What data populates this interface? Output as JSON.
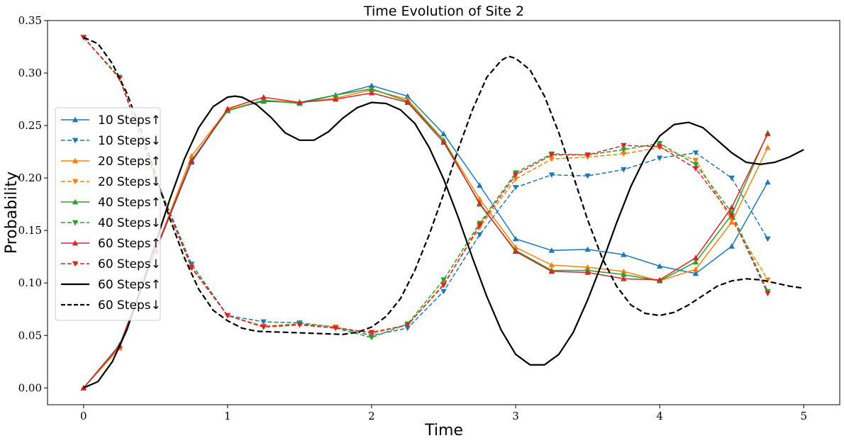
{
  "chart_data": {
    "type": "line",
    "title": "Time Evolution of Site 2",
    "xlabel": "Time",
    "ylabel": "Probability",
    "xlim": [
      -0.25,
      5.25
    ],
    "ylim": [
      -0.016,
      0.35
    ],
    "xticks": [
      0,
      1,
      2,
      3,
      4,
      5
    ],
    "xtick_labels": [
      "0",
      "1",
      "2",
      "3",
      "4",
      "5"
    ],
    "yticks": [
      0.0,
      0.05,
      0.1,
      0.15,
      0.2,
      0.25,
      0.3,
      0.35
    ],
    "ytick_labels": [
      "0.00",
      "0.05",
      "0.10",
      "0.15",
      "0.20",
      "0.25",
      "0.30",
      "0.35"
    ],
    "grid": false,
    "legend_position": "center-left",
    "x": [
      0,
      0.25,
      0.5,
      0.75,
      1.0,
      1.25,
      1.5,
      1.75,
      2.0,
      2.25,
      2.5,
      2.75,
      3.0,
      3.25,
      3.5,
      3.75,
      4.0,
      4.25,
      4.5,
      4.75
    ],
    "series": [
      {
        "name": "10 Steps↑",
        "color": "#1f77b4",
        "dash": "solid",
        "marker": "triangle-up",
        "values": [
          0.0,
          0.041,
          0.13,
          0.215,
          0.265,
          0.273,
          0.272,
          0.279,
          0.288,
          0.278,
          0.242,
          0.193,
          0.142,
          0.131,
          0.132,
          0.127,
          0.116,
          0.109,
          0.135,
          0.196
        ]
      },
      {
        "name": "10 Steps↓",
        "color": "#1f77b4",
        "dash": "dashed",
        "marker": "triangle-down",
        "values": [
          0.334,
          0.295,
          0.2,
          0.118,
          0.069,
          0.063,
          0.062,
          0.058,
          0.05,
          0.057,
          0.092,
          0.146,
          0.191,
          0.203,
          0.202,
          0.208,
          0.219,
          0.224,
          0.2,
          0.142
        ]
      },
      {
        "name": "20 Steps↑",
        "color": "#ff7f0e",
        "dash": "solid",
        "marker": "triangle-up",
        "values": [
          0.0,
          0.038,
          0.131,
          0.221,
          0.265,
          0.274,
          0.272,
          0.276,
          0.284,
          0.275,
          0.236,
          0.18,
          0.134,
          0.117,
          0.115,
          0.111,
          0.102,
          0.113,
          0.158,
          0.229
        ]
      },
      {
        "name": "20 Steps↓",
        "color": "#ff7f0e",
        "dash": "dashed",
        "marker": "triangle-down",
        "values": [
          0.334,
          0.295,
          0.198,
          0.114,
          0.069,
          0.059,
          0.061,
          0.058,
          0.052,
          0.06,
          0.099,
          0.153,
          0.199,
          0.218,
          0.22,
          0.223,
          0.229,
          0.217,
          0.16,
          0.103
        ]
      },
      {
        "name": "40 Steps↑",
        "color": "#2ca02c",
        "dash": "solid",
        "marker": "triangle-up",
        "values": [
          0.0,
          0.04,
          0.131,
          0.217,
          0.264,
          0.274,
          0.271,
          0.279,
          0.285,
          0.273,
          0.236,
          0.175,
          0.131,
          0.112,
          0.112,
          0.108,
          0.102,
          0.12,
          0.165,
          0.243
        ]
      },
      {
        "name": "40 Steps↓",
        "color": "#2ca02c",
        "dash": "dashed",
        "marker": "triangle-down",
        "values": [
          0.334,
          0.296,
          0.2,
          0.115,
          0.069,
          0.058,
          0.061,
          0.057,
          0.048,
          0.061,
          0.103,
          0.157,
          0.205,
          0.223,
          0.222,
          0.227,
          0.233,
          0.213,
          0.167,
          0.092
        ]
      },
      {
        "name": "60 Steps↑",
        "color": "#d62728",
        "dash": "solid",
        "marker": "triangle-up",
        "values": [
          0.0,
          0.04,
          0.131,
          0.216,
          0.266,
          0.277,
          0.272,
          0.275,
          0.281,
          0.272,
          0.234,
          0.176,
          0.13,
          0.111,
          0.11,
          0.104,
          0.103,
          0.124,
          0.172,
          0.242
        ]
      },
      {
        "name": "60 Steps↓",
        "color": "#d62728",
        "dash": "dashed",
        "marker": "triangle-down",
        "values": [
          0.334,
          0.295,
          0.199,
          0.115,
          0.069,
          0.058,
          0.06,
          0.057,
          0.053,
          0.06,
          0.098,
          0.155,
          0.203,
          0.222,
          0.222,
          0.231,
          0.23,
          0.209,
          0.164,
          0.09
        ]
      },
      {
        "name": "60 Steps↑",
        "color": "#000000",
        "dash": "solid",
        "marker": "none",
        "points": [
          [
            0,
            0.0
          ],
          [
            0.1,
            0.006
          ],
          [
            0.2,
            0.025
          ],
          [
            0.3,
            0.055
          ],
          [
            0.4,
            0.095
          ],
          [
            0.5,
            0.138
          ],
          [
            0.6,
            0.18
          ],
          [
            0.7,
            0.218
          ],
          [
            0.8,
            0.248
          ],
          [
            0.9,
            0.268
          ],
          [
            1.0,
            0.277
          ],
          [
            1.05,
            0.278
          ],
          [
            1.1,
            0.277
          ],
          [
            1.2,
            0.27
          ],
          [
            1.3,
            0.258
          ],
          [
            1.4,
            0.243
          ],
          [
            1.5,
            0.236
          ],
          [
            1.6,
            0.236
          ],
          [
            1.7,
            0.244
          ],
          [
            1.8,
            0.257
          ],
          [
            1.9,
            0.267
          ],
          [
            2.0,
            0.272
          ],
          [
            2.1,
            0.271
          ],
          [
            2.2,
            0.265
          ],
          [
            2.3,
            0.252
          ],
          [
            2.4,
            0.229
          ],
          [
            2.5,
            0.199
          ],
          [
            2.6,
            0.163
          ],
          [
            2.7,
            0.124
          ],
          [
            2.8,
            0.087
          ],
          [
            2.9,
            0.055
          ],
          [
            3.0,
            0.032
          ],
          [
            3.1,
            0.022
          ],
          [
            3.2,
            0.022
          ],
          [
            3.3,
            0.032
          ],
          [
            3.4,
            0.053
          ],
          [
            3.5,
            0.084
          ],
          [
            3.6,
            0.119
          ],
          [
            3.7,
            0.157
          ],
          [
            3.8,
            0.192
          ],
          [
            3.9,
            0.22
          ],
          [
            4.0,
            0.24
          ],
          [
            4.1,
            0.251
          ],
          [
            4.2,
            0.253
          ],
          [
            4.3,
            0.248
          ],
          [
            4.4,
            0.236
          ],
          [
            4.5,
            0.224
          ],
          [
            4.6,
            0.215
          ],
          [
            4.7,
            0.213
          ],
          [
            4.8,
            0.215
          ],
          [
            4.9,
            0.22
          ],
          [
            5.0,
            0.227
          ]
        ]
      },
      {
        "name": "60 Steps↓",
        "color": "#000000",
        "dash": "dashed",
        "marker": "none",
        "points": [
          [
            0,
            0.334
          ],
          [
            0.1,
            0.328
          ],
          [
            0.2,
            0.309
          ],
          [
            0.3,
            0.281
          ],
          [
            0.4,
            0.245
          ],
          [
            0.5,
            0.203
          ],
          [
            0.6,
            0.161
          ],
          [
            0.7,
            0.124
          ],
          [
            0.8,
            0.094
          ],
          [
            0.9,
            0.074
          ],
          [
            1.0,
            0.064
          ],
          [
            1.1,
            0.057
          ],
          [
            1.2,
            0.054
          ],
          [
            1.4,
            0.053
          ],
          [
            1.6,
            0.052
          ],
          [
            1.8,
            0.051
          ],
          [
            1.9,
            0.053
          ],
          [
            2.0,
            0.058
          ],
          [
            2.1,
            0.068
          ],
          [
            2.2,
            0.085
          ],
          [
            2.3,
            0.112
          ],
          [
            2.4,
            0.146
          ],
          [
            2.5,
            0.185
          ],
          [
            2.6,
            0.227
          ],
          [
            2.7,
            0.265
          ],
          [
            2.8,
            0.296
          ],
          [
            2.9,
            0.312
          ],
          [
            2.95,
            0.316
          ],
          [
            3.0,
            0.314
          ],
          [
            3.1,
            0.303
          ],
          [
            3.2,
            0.278
          ],
          [
            3.3,
            0.243
          ],
          [
            3.4,
            0.202
          ],
          [
            3.5,
            0.16
          ],
          [
            3.6,
            0.124
          ],
          [
            3.7,
            0.097
          ],
          [
            3.8,
            0.079
          ],
          [
            3.9,
            0.071
          ],
          [
            4.0,
            0.069
          ],
          [
            4.1,
            0.072
          ],
          [
            4.2,
            0.079
          ],
          [
            4.3,
            0.088
          ],
          [
            4.4,
            0.097
          ],
          [
            4.5,
            0.102
          ],
          [
            4.6,
            0.104
          ],
          [
            4.7,
            0.103
          ],
          [
            4.8,
            0.1
          ],
          [
            4.9,
            0.097
          ],
          [
            5.0,
            0.095
          ]
        ]
      }
    ]
  }
}
